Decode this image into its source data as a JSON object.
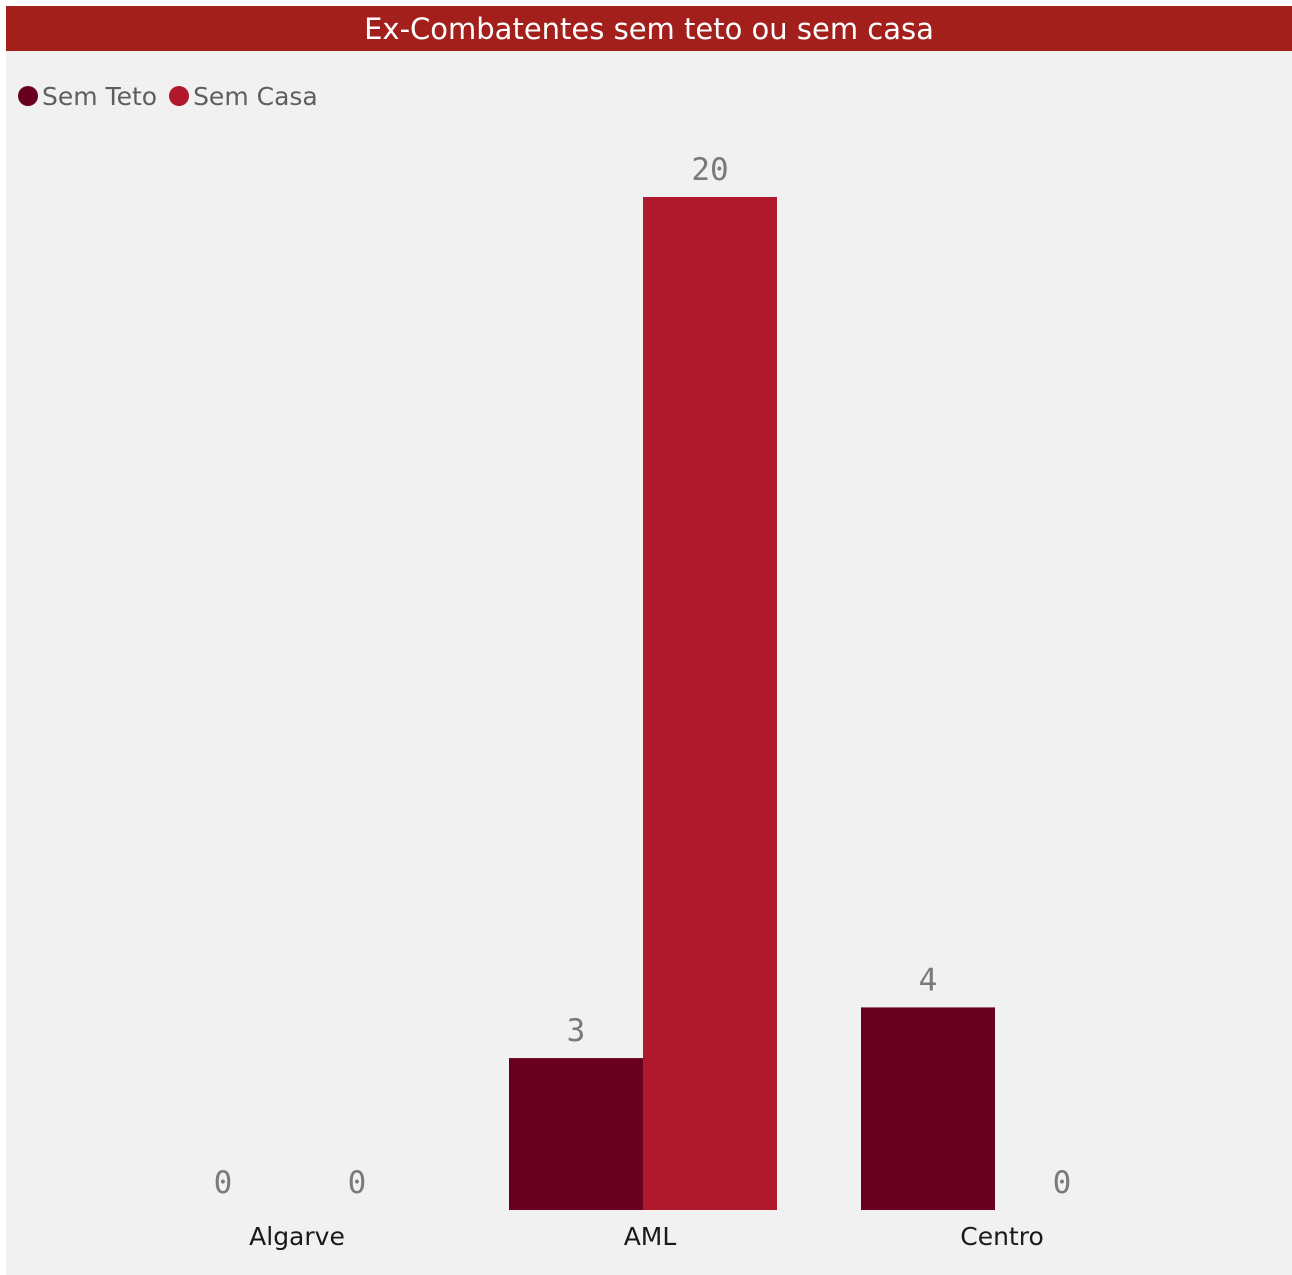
{
  "chart_data": {
    "type": "bar",
    "title": "Ex-Combatentes sem teto ou sem casa",
    "categories": [
      "Algarve",
      "AML",
      "Centro"
    ],
    "series": [
      {
        "name": "Sem Teto",
        "values": [
          0,
          3,
          4
        ],
        "color": "#6a0020"
      },
      {
        "name": "Sem Casa",
        "values": [
          0,
          20,
          0
        ],
        "color": "#b0182c"
      }
    ],
    "ylim": [
      0,
      20
    ],
    "grid": false,
    "legend_position": "top-left",
    "xlabel": "",
    "ylabel": ""
  },
  "colors": {
    "title_bar": "#a31f1c",
    "background": "#f2f1f1"
  }
}
